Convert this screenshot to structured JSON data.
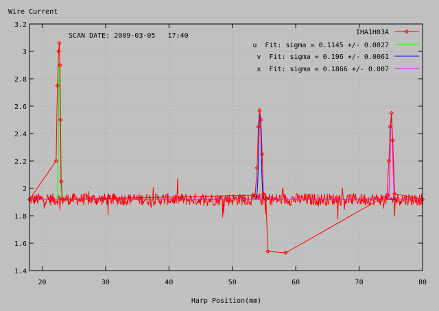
{
  "chart_data": {
    "type": "scatter",
    "ylabel": "Wire Current",
    "xlabel": "Harp Position(mm)",
    "annotation": "SCAN DATE: 2009-03-05   17:40",
    "xlim": [
      18,
      80
    ],
    "ylim": [
      1.4,
      3.2
    ],
    "x_ticks": [
      20,
      30,
      40,
      50,
      60,
      70,
      80
    ],
    "y_ticks": [
      1.4,
      1.6,
      1.8,
      2,
      2.2,
      2.4,
      2.6,
      2.8,
      3,
      3.2
    ],
    "y_tick_labels": [
      "1.4",
      "1.6",
      "1.8",
      "2",
      "2.2",
      "2.4",
      "2.6",
      "2.8",
      "3",
      "3.2"
    ],
    "grid": true,
    "legend_position": "top-right",
    "baseline": 1.92,
    "series": [
      {
        "name": "IHA1H03A",
        "color": "#ff0000",
        "style": "linespoints",
        "x": [
          18,
          22.2,
          22.4,
          22.6,
          22.7,
          22.8,
          22.9,
          23.0,
          23.2,
          53.6,
          53.9,
          54.1,
          54.3,
          54.5,
          54.7,
          54.9,
          55.3,
          55.6,
          58.4,
          74.4,
          74.7,
          74.9,
          75.1,
          75.3,
          75.6,
          80
        ],
        "y": [
          1.92,
          2.2,
          2.75,
          3.0,
          3.06,
          2.9,
          2.5,
          2.05,
          1.92,
          1.95,
          2.15,
          2.45,
          2.57,
          2.5,
          2.25,
          1.96,
          1.92,
          1.54,
          1.53,
          1.95,
          2.2,
          2.45,
          2.55,
          2.35,
          1.96,
          1.92
        ]
      },
      {
        "name": "u  Fit: sigma = 0.1145 +/- 0.0027",
        "color": "#00ff00",
        "style": "lines",
        "fit": {
          "center": 22.7,
          "sigma": 0.1145,
          "amplitude": 1.0,
          "baseline": 1.92
        }
      },
      {
        "name": "v  Fit: sigma = 0.196 +/- 0.0061",
        "color": "#0000ff",
        "style": "lines",
        "fit": {
          "center": 54.35,
          "sigma": 0.196,
          "amplitude": 0.63,
          "baseline": 1.92
        }
      },
      {
        "name": "x  Fit: sigma = 0.1866 +/- 0.007",
        "color": "#ff00ff",
        "style": "lines",
        "fit": {
          "center": 75.1,
          "sigma": 0.1866,
          "amplitude": 0.6,
          "baseline": 1.92
        }
      }
    ]
  }
}
